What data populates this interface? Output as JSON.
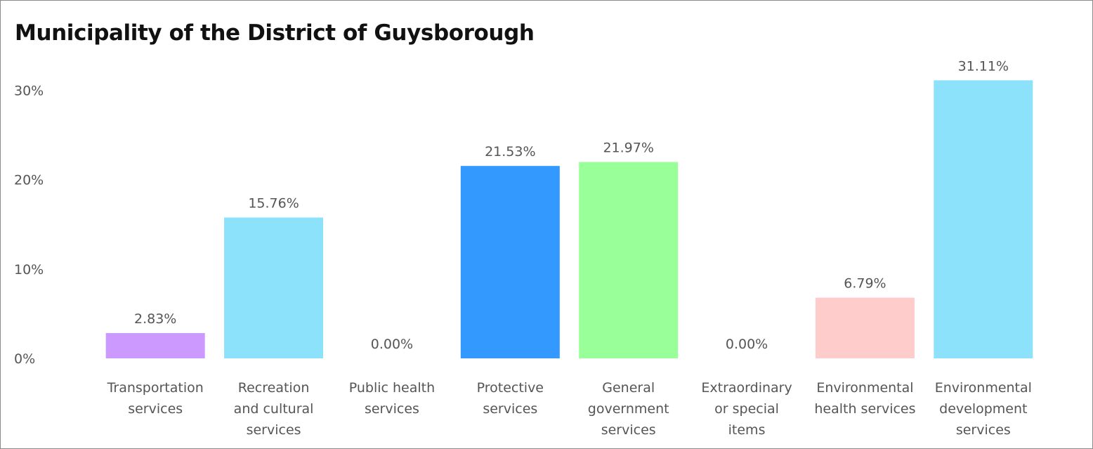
{
  "title": "Municipality of the District of Guysborough",
  "chart_data": {
    "type": "bar",
    "title": "Municipality of the District of Guysborough",
    "xlabel": "",
    "ylabel": "",
    "ylim": [
      0,
      32
    ],
    "y_ticks": [
      {
        "value": 0,
        "label": "0%"
      },
      {
        "value": 10,
        "label": "10%"
      },
      {
        "value": 20,
        "label": "20%"
      },
      {
        "value": 30,
        "label": "30%"
      }
    ],
    "grid": false,
    "legend": "none",
    "categories": [
      [
        "Transportation",
        "services"
      ],
      [
        "Recreation",
        "and cultural",
        "services"
      ],
      [
        "Public health",
        "services"
      ],
      [
        "Protective",
        "services"
      ],
      [
        "General",
        "government",
        "services"
      ],
      [
        "Extraordinary",
        "or special",
        "items"
      ],
      [
        "Environmental",
        "health services"
      ],
      [
        "Environmental",
        "development",
        "services"
      ]
    ],
    "values": [
      2.83,
      15.76,
      0.0,
      21.53,
      21.97,
      0.0,
      6.79,
      31.11
    ],
    "value_labels": [
      "2.83%",
      "15.76%",
      "0.00%",
      "21.53%",
      "21.97%",
      "0.00%",
      "6.79%",
      "31.11%"
    ],
    "colors": [
      "#CC99FF",
      "#8CE1FB",
      "#8CE1FB",
      "#3399FF",
      "#99FF99",
      "#8CE1FB",
      "#FFCCCC",
      "#8CE1FB"
    ]
  }
}
